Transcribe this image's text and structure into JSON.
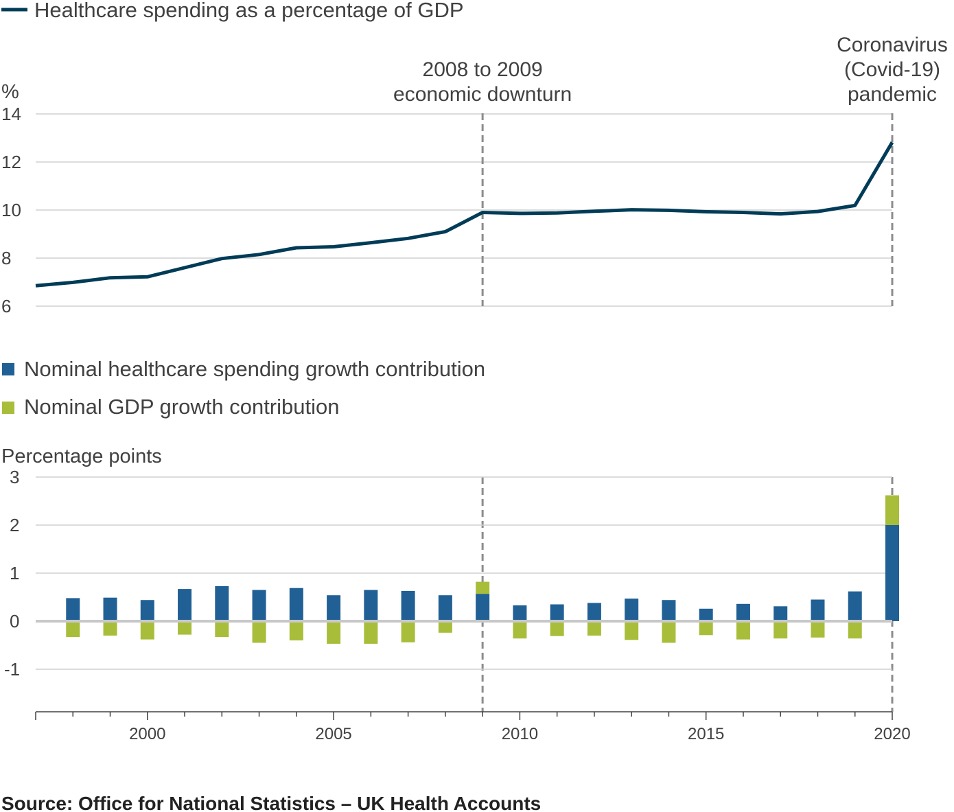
{
  "chart_data": [
    {
      "type": "line",
      "legend": "Healthcare spending as a percentage of GDP",
      "ylabel": "%",
      "ylim": [
        6,
        14
      ],
      "yticks": [
        6,
        8,
        10,
        12,
        14
      ],
      "color": "#003c57",
      "x": [
        1997,
        1998,
        1999,
        2000,
        2001,
        2002,
        2003,
        2004,
        2005,
        2006,
        2007,
        2008,
        2009,
        2010,
        2011,
        2012,
        2013,
        2014,
        2015,
        2016,
        2017,
        2018,
        2019,
        2020
      ],
      "values": [
        6.85,
        6.99,
        7.18,
        7.22,
        7.6,
        7.98,
        8.15,
        8.43,
        8.47,
        8.64,
        8.82,
        9.1,
        9.9,
        9.86,
        9.88,
        9.95,
        10.01,
        9.99,
        9.93,
        9.9,
        9.84,
        9.94,
        10.19,
        12.82
      ],
      "grid": true
    },
    {
      "type": "bar",
      "stacked": true,
      "ylabel": "Percentage points",
      "ylim": [
        -1,
        3
      ],
      "yticks": [
        -1,
        0,
        1,
        2,
        3
      ],
      "x": [
        1998,
        1999,
        2000,
        2001,
        2002,
        2003,
        2004,
        2005,
        2006,
        2007,
        2008,
        2009,
        2010,
        2011,
        2012,
        2013,
        2014,
        2015,
        2016,
        2017,
        2018,
        2019,
        2020
      ],
      "series": [
        {
          "name": "Nominal healthcare spending growth contribution",
          "color": "#206095",
          "values": [
            0.48,
            0.49,
            0.44,
            0.67,
            0.73,
            0.65,
            0.69,
            0.54,
            0.65,
            0.63,
            0.54,
            0.57,
            0.33,
            0.35,
            0.38,
            0.47,
            0.44,
            0.26,
            0.36,
            0.31,
            0.45,
            0.62,
            2.0
          ]
        },
        {
          "name": "Nominal GDP growth contribution",
          "color": "#a8bd3a",
          "values": [
            -0.33,
            -0.3,
            -0.38,
            -0.28,
            -0.33,
            -0.45,
            -0.4,
            -0.47,
            -0.47,
            -0.44,
            -0.24,
            0.25,
            -0.36,
            -0.31,
            -0.3,
            -0.39,
            -0.45,
            -0.29,
            -0.38,
            -0.36,
            -0.34,
            -0.36,
            0.62
          ]
        }
      ],
      "grid": true
    }
  ],
  "xaxis": {
    "range": [
      1997,
      2020
    ],
    "ticks": [
      2000,
      2005,
      2010,
      2015,
      2020
    ]
  },
  "annotations": [
    {
      "x": 2009,
      "lines": [
        "2008 to 2009",
        "economic downturn"
      ]
    },
    {
      "x": 2020,
      "lines": [
        "Coronavirus",
        "(Covid-19)",
        "pandemic"
      ]
    }
  ],
  "source": "Source: Office for National Statistics – UK Health Accounts",
  "colors": {
    "grid": "#d0d0d0",
    "zero": "#c8c8c8",
    "axis": "#414042",
    "dash": "#8c8c8c"
  }
}
